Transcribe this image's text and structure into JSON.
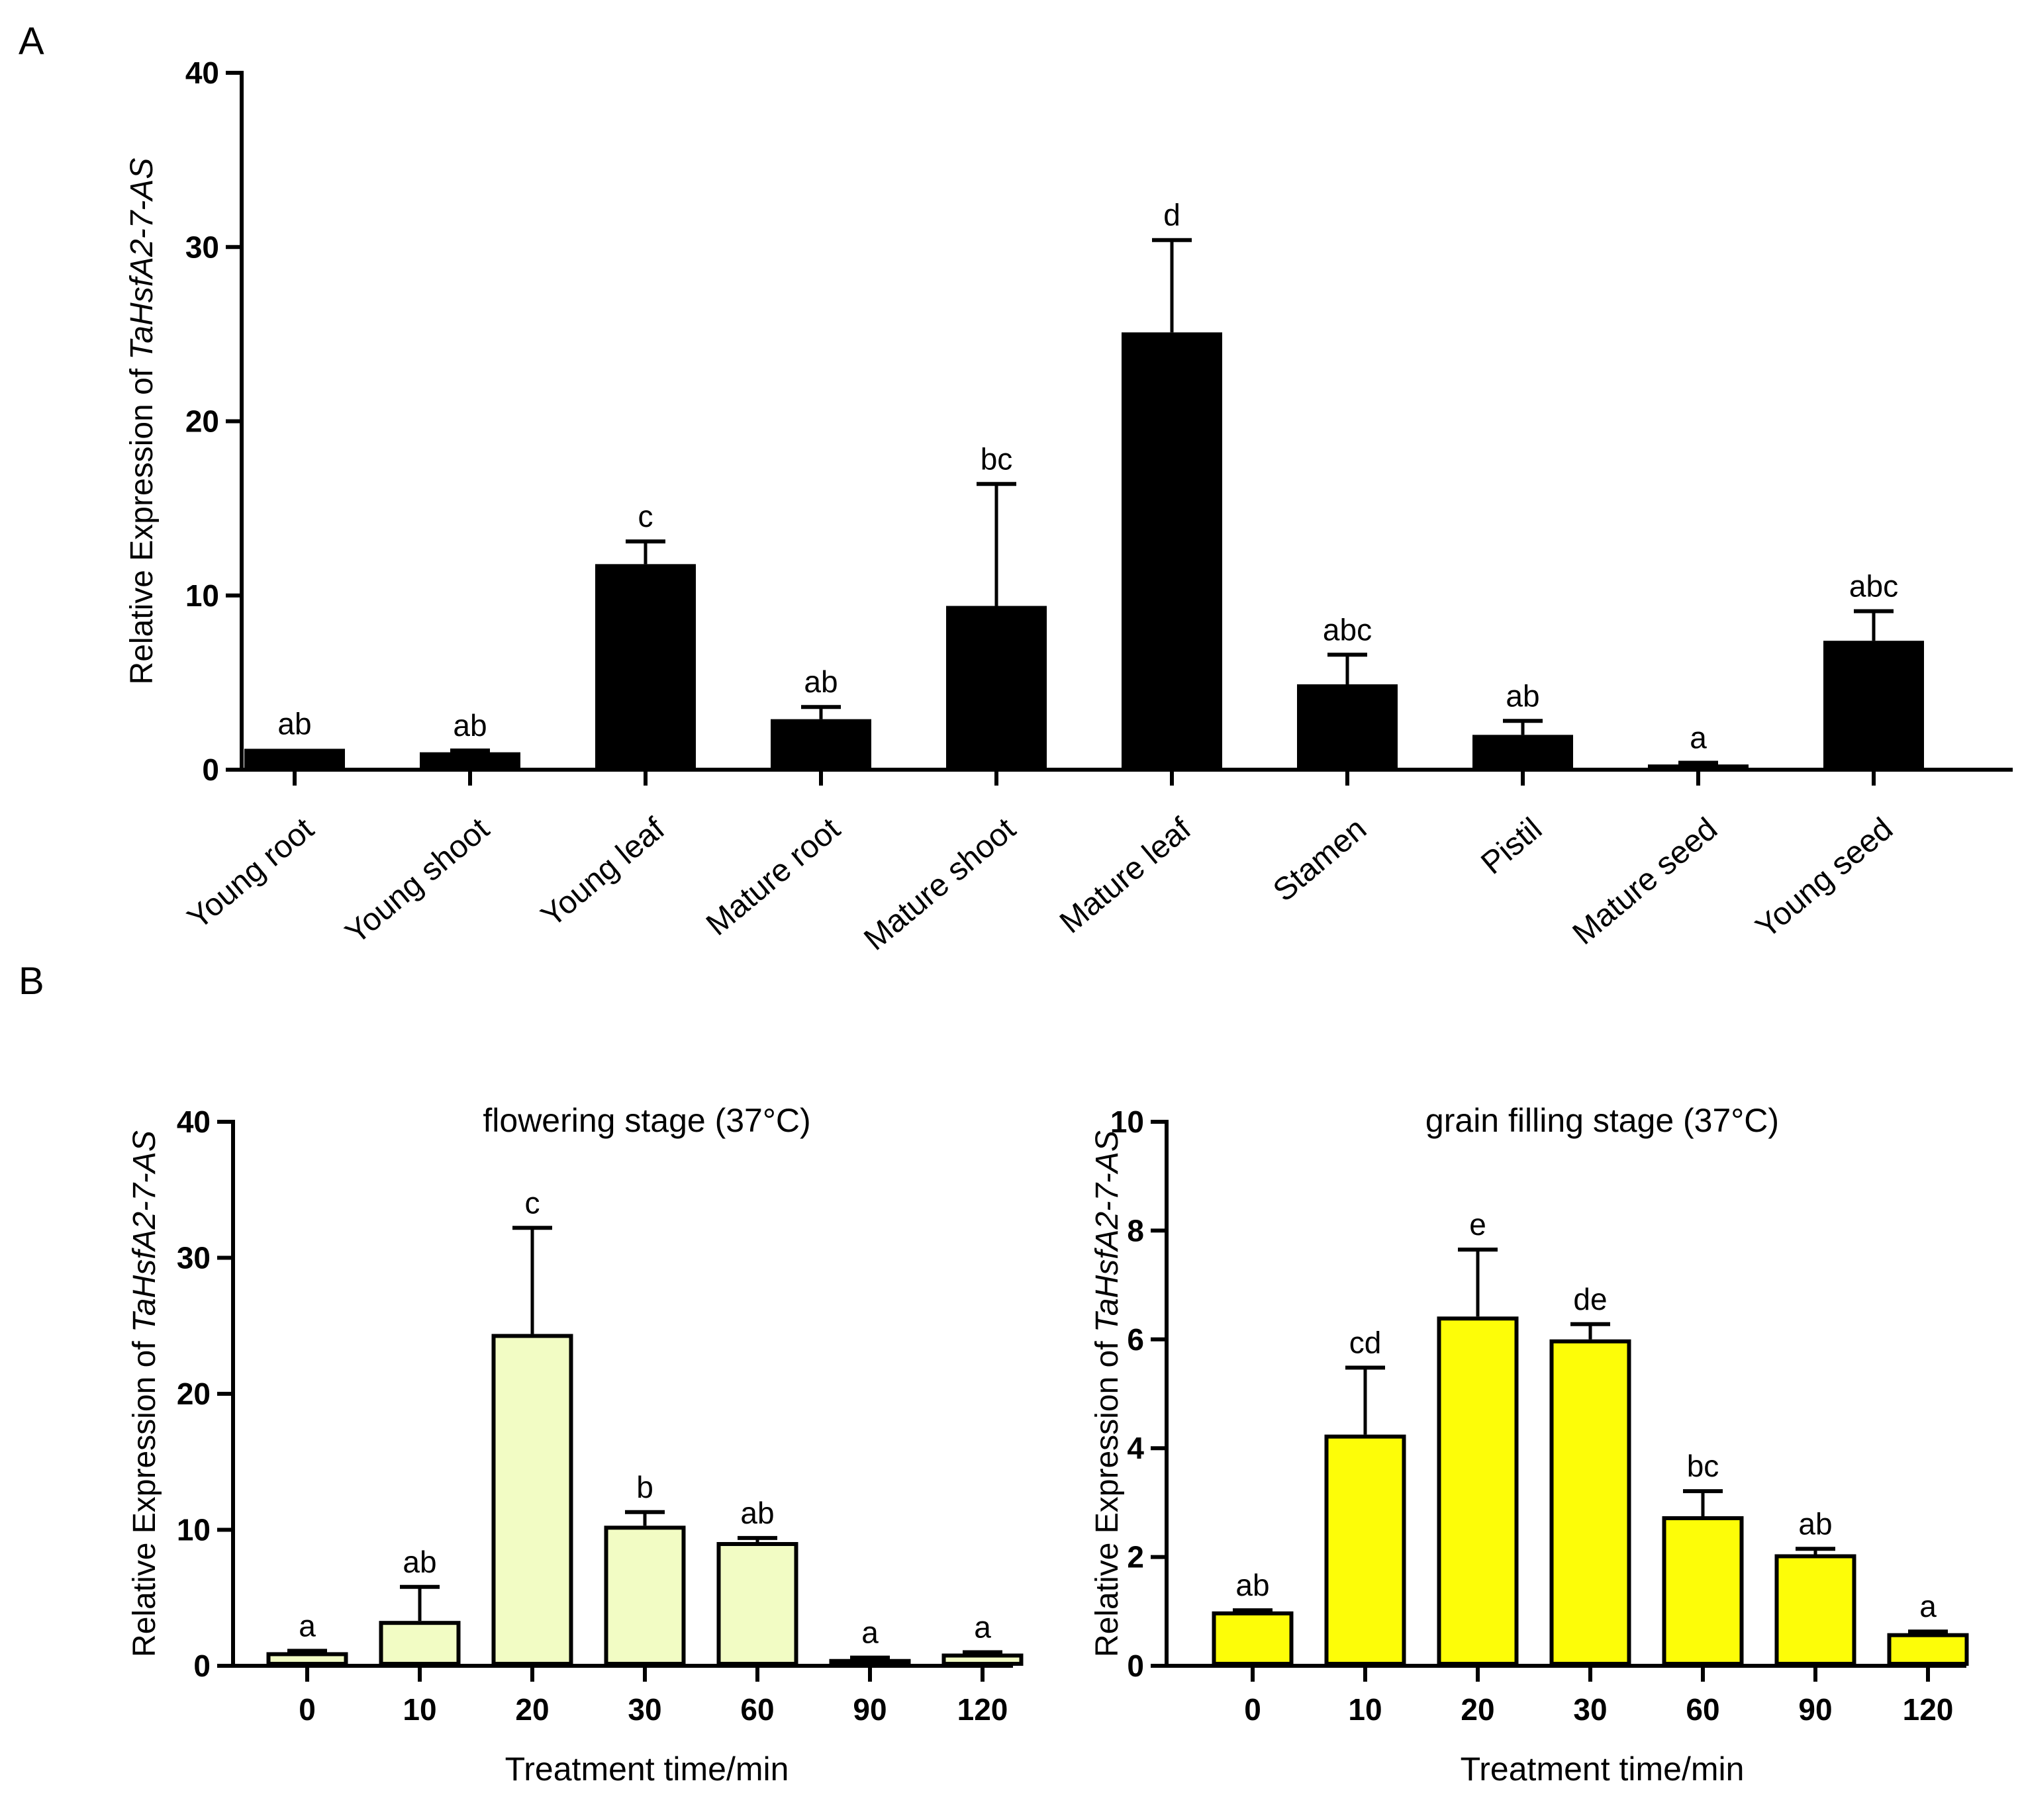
{
  "panels": {
    "a": "A",
    "b": "B"
  },
  "chart_data": [
    {
      "id": "A",
      "type": "bar",
      "title": "",
      "ylabel_prefix": "Relative Expression of ",
      "ylabel_gene": "TaHsfA2-7-AS",
      "xlabel": "",
      "ylim": [
        0,
        40
      ],
      "yticks": [
        0,
        10,
        20,
        30,
        40
      ],
      "grid": false,
      "bar_color": "#000000",
      "categories": [
        "Young root",
        "Young shoot",
        "Young leaf",
        "Mature root",
        "Mature shoot",
        "Mature leaf",
        "Stamen",
        "Pistil",
        "Mature seed",
        "Young seed"
      ],
      "values": [
        1.2,
        1.0,
        11.8,
        2.9,
        9.4,
        25.1,
        4.9,
        2.0,
        0.3,
        7.4
      ],
      "errors": [
        0.0,
        0.1,
        1.3,
        0.7,
        7.0,
        5.3,
        1.7,
        0.8,
        0.1,
        1.7
      ],
      "labels": [
        "ab",
        "ab",
        "c",
        "ab",
        "bc",
        "d",
        "abc",
        "ab",
        "a",
        "abc"
      ]
    },
    {
      "id": "B1",
      "type": "bar",
      "title": "flowering stage (37°C)",
      "ylabel_prefix": "Relative Expression of ",
      "ylabel_gene": "TaHsfA2-7-AS",
      "xlabel": "Treatment time/min",
      "ylim": [
        0,
        40
      ],
      "yticks": [
        0,
        10,
        20,
        30,
        40
      ],
      "grid": false,
      "bar_color": "#f2fcc4",
      "categories": [
        "0",
        "10",
        "20",
        "30",
        "60",
        "90",
        "120"
      ],
      "values": [
        1.0,
        3.3,
        24.4,
        10.3,
        9.1,
        0.5,
        0.9
      ],
      "errors": [
        0.1,
        2.5,
        7.8,
        1.0,
        0.3,
        0.1,
        0.1
      ],
      "labels": [
        "a",
        "ab",
        "c",
        "b",
        "ab",
        "a",
        "a"
      ]
    },
    {
      "id": "B2",
      "type": "bar",
      "title": "grain filling stage (37°C)",
      "ylabel_prefix": "Relative Expression of ",
      "ylabel_gene": "TaHsfA2-7-AS",
      "xlabel": "Treatment time/min",
      "ylim": [
        0,
        10
      ],
      "yticks": [
        0,
        2,
        4,
        6,
        8,
        10
      ],
      "grid": false,
      "bar_color": "#fdfd08",
      "categories": [
        "0",
        "10",
        "20",
        "30",
        "60",
        "90",
        "120"
      ],
      "values": [
        1.0,
        4.25,
        6.42,
        6.0,
        2.75,
        2.05,
        0.6
      ],
      "errors": [
        0.02,
        1.23,
        1.23,
        0.28,
        0.46,
        0.1,
        0.03
      ],
      "labels": [
        "ab",
        "cd",
        "e",
        "de",
        "bc",
        "ab",
        "a"
      ]
    }
  ]
}
